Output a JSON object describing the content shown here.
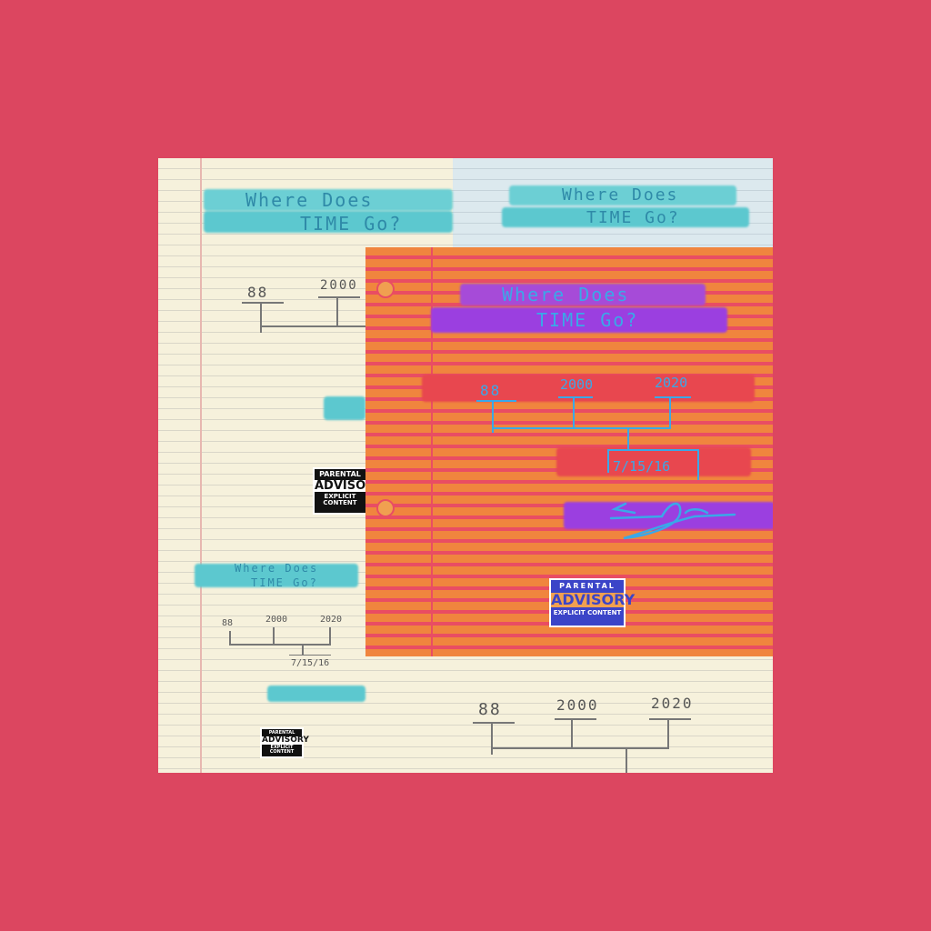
{
  "title": {
    "line1": "Where Does",
    "line2": "TIME Go?"
  },
  "timeline": {
    "year1": "88",
    "year2": "2000",
    "year3": "2020",
    "date": "7/15/16"
  },
  "advisory": {
    "line1": "PARENTAL",
    "line2": "ADVISORY",
    "line3": "EXPLICIT CONTENT"
  },
  "colors": {
    "background": "#dc4660",
    "orange_paper": "#f0853e",
    "cream_paper": "#f6f1dc",
    "handwriting_blue": "#3aa8e8",
    "highlight_purple": "#9b3fe0",
    "highlight_teal": "#5cc8cf"
  }
}
